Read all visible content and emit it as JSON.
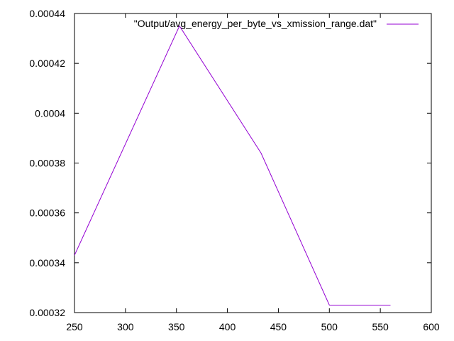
{
  "chart_data": {
    "type": "line",
    "title": "",
    "xlabel": "",
    "ylabel": "",
    "xlim": [
      250,
      600
    ],
    "ylim": [
      0.00032,
      0.00044
    ],
    "grid": false,
    "legend_position": "top-right",
    "x_ticks": [
      250,
      300,
      350,
      400,
      450,
      500,
      550,
      600
    ],
    "x_tick_labels": [
      "250",
      "300",
      "350",
      "400",
      "450",
      "500",
      "550",
      "600"
    ],
    "y_ticks": [
      0.00032,
      0.00034,
      0.00036,
      0.00038,
      0.0004,
      0.00042,
      0.00044
    ],
    "y_tick_labels": [
      "0.00032",
      "0.00034",
      "0.00036",
      "0.00038",
      "0.0004",
      "0.00042",
      "0.00044"
    ],
    "series": [
      {
        "name": "\"Output/avg_energy_per_byte_vs_xmission_range.dat\"",
        "color": "#9400d3",
        "x": [
          250,
          353,
          433,
          500,
          560
        ],
        "y": [
          0.000343,
          0.000435,
          0.000384,
          0.000323,
          0.000323
        ]
      }
    ]
  }
}
